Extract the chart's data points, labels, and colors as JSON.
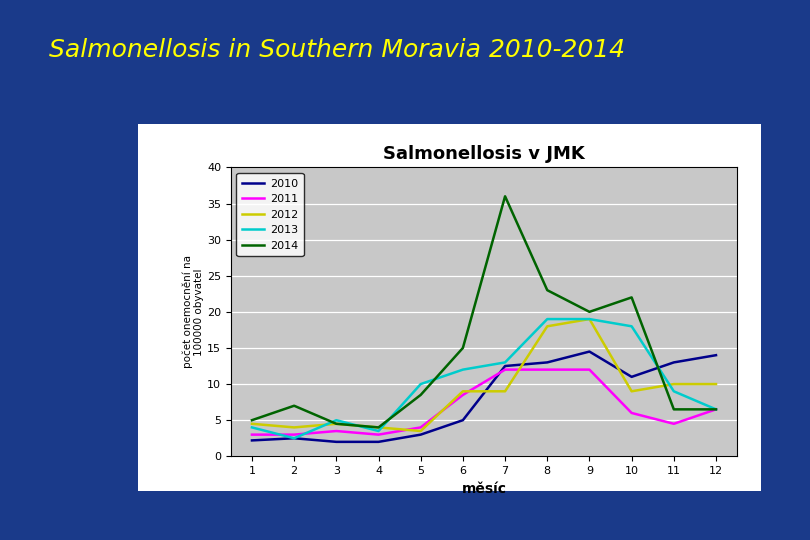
{
  "title_main": "Salmonellosis in Southern Moravia 2010-2014",
  "title_main_color": "#FFFF00",
  "title_main_fontsize": 18,
  "background_main": "#1a3a8a",
  "chart_title": "Salmonellosis v JMK",
  "chart_title_fontsize": 13,
  "xlabel": "měsíc",
  "ylabel": "počet onemocnění na\n100000 obyvatel",
  "xlim": [
    0.5,
    12.5
  ],
  "ylim": [
    0,
    40
  ],
  "yticks": [
    0,
    5,
    10,
    15,
    20,
    25,
    30,
    35,
    40
  ],
  "xticks": [
    1,
    2,
    3,
    4,
    5,
    6,
    7,
    8,
    9,
    10,
    11,
    12
  ],
  "chart_bg": "#C8C8C8",
  "chart_border_color": "#ffffff",
  "series": [
    {
      "label": "2010",
      "color": "#00008B",
      "linewidth": 1.8,
      "values": [
        2.2,
        2.5,
        2.0,
        2.0,
        3.0,
        5.0,
        12.5,
        13.0,
        14.5,
        11.0,
        13.0,
        14.0
      ]
    },
    {
      "label": "2011",
      "color": "#FF00FF",
      "linewidth": 1.8,
      "values": [
        3.0,
        3.0,
        3.5,
        3.0,
        4.0,
        8.5,
        12.0,
        12.0,
        12.0,
        6.0,
        4.5,
        6.5
      ]
    },
    {
      "label": "2012",
      "color": "#CCCC00",
      "linewidth": 1.8,
      "values": [
        4.5,
        4.0,
        4.5,
        4.0,
        3.5,
        9.0,
        9.0,
        18.0,
        19.0,
        9.0,
        10.0,
        10.0
      ]
    },
    {
      "label": "2013",
      "color": "#00CCCC",
      "linewidth": 1.8,
      "values": [
        4.0,
        2.5,
        5.0,
        3.5,
        10.0,
        12.0,
        13.0,
        19.0,
        19.0,
        18.0,
        9.0,
        6.5
      ]
    },
    {
      "label": "2014",
      "color": "#006400",
      "linewidth": 1.8,
      "values": [
        5.0,
        7.0,
        4.5,
        4.0,
        8.5,
        15.0,
        36.0,
        23.0,
        20.0,
        22.0,
        6.5,
        6.5
      ]
    }
  ]
}
